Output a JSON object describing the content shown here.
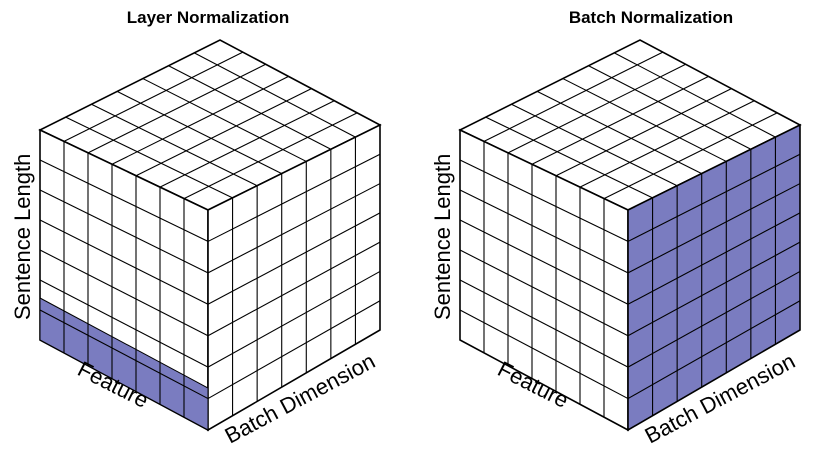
{
  "colors": {
    "highlight": "#7a7cc0",
    "grid_line": "#000000",
    "background": "#ffffff"
  },
  "cubes": [
    {
      "id": "layer-normalization",
      "title": "Layer Normalization",
      "axes": {
        "vertical": "Sentence Length",
        "left_diagonal": "Feature",
        "right_diagonal": "Batch Dimension"
      },
      "grid": {
        "feature_cells": 7,
        "batch_cells": 7,
        "length_cells": 7
      },
      "highlighted_region": "bottom row across feature dimension (front-left face)"
    },
    {
      "id": "batch-normalization",
      "title": "Batch Normalization",
      "axes": {
        "vertical": "Sentence Length",
        "left_diagonal": "Feature",
        "right_diagonal": "Batch Dimension"
      },
      "grid": {
        "feature_cells": 7,
        "batch_cells": 7,
        "length_cells": 7
      },
      "highlighted_region": "entire right face (batch x sentence length for one feature)"
    }
  ]
}
